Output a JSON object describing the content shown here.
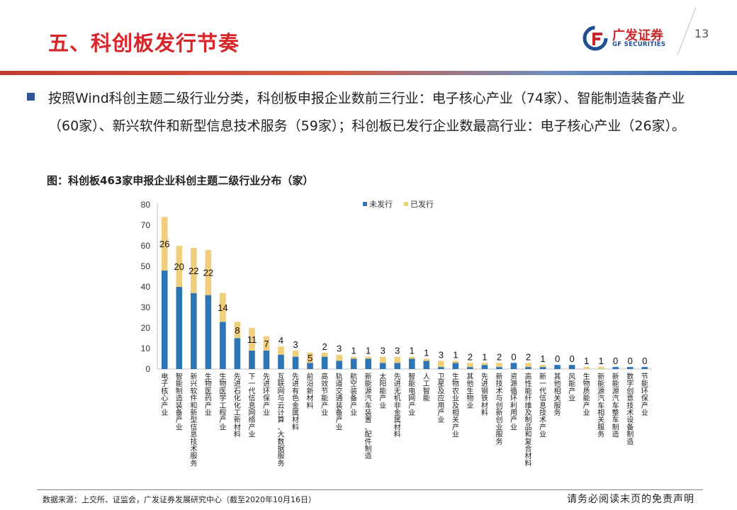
{
  "header": {
    "title": "五、科创板发行节奏",
    "logo_cn": "广发证券",
    "logo_en": "GF SECURITIES",
    "page_number": "13"
  },
  "body": {
    "paragraph": "按照Wind科创主题二级行业分类，科创板申报企业数前三行业：电子核心产业（74家）、智能制造装备产业（60家）、新兴软件和新型信息技术服务（59家）；科创板已发行企业数最高行业：电子核心产业（26家）。",
    "figure_caption": "图：科创板463家申报企业科创主题二级行业分布（家）"
  },
  "colors": {
    "title_red": "#d8252a",
    "bar_blue": "#2e75b6",
    "bar_gold": "#f0cf7c",
    "bullet_blue": "#2f5597"
  },
  "chart_data": {
    "type": "bar",
    "stacked": true,
    "categories": [
      "电子核心产业",
      "智能制造装备产业",
      "新兴软件和新型信息技术服务",
      "生物医药产业",
      "生物医学工程产业",
      "先进石化化工新材料",
      "下一代信息网络产业",
      "先进环保产业",
      "互联网与云计算、大数据服务",
      "先进有色金属材料",
      "前沿新材料",
      "高效节能产业",
      "轨道交通装备产业",
      "航空装备产业",
      "新能源汽车装置、配件制造",
      "太阳能产业",
      "先进无机非金属材料",
      "智能电网产业",
      "人工智能",
      "卫星及应用产业",
      "生物农业及相关产业",
      "其他生物业",
      "先进钢铁材料",
      "新技术与创新创业服务",
      "资源循环利用产业",
      "高性能纤维及制品和复合材料",
      "新一代信息技术产业",
      "其他相关服务",
      "风能产业",
      "生物质能产业",
      "新能源汽车相关服务",
      "新能源汽车整车制造",
      "数字创意技术设备制造",
      "节能环保产业"
    ],
    "series": [
      {
        "name": "未发行",
        "values": [
          48,
          40,
          37,
          36,
          23,
          15,
          9,
          9,
          7,
          6,
          3,
          6,
          4,
          5,
          5,
          3,
          3,
          5,
          4,
          1,
          3,
          1,
          2,
          1,
          3,
          1,
          1,
          2,
          2,
          0,
          0,
          1,
          1,
          1
        ]
      },
      {
        "name": "已发行",
        "values": [
          26,
          20,
          22,
          22,
          14,
          8,
          11,
          7,
          4,
          3,
          5,
          2,
          3,
          1,
          1,
          3,
          3,
          1,
          1,
          3,
          1,
          2,
          1,
          2,
          0,
          2,
          1,
          0,
          0,
          1,
          1,
          0,
          0,
          0
        ]
      }
    ],
    "data_labels": [
      "26",
      "20",
      "22",
      "22",
      "14",
      "8",
      "11",
      "7",
      "4",
      "3",
      "5",
      "2",
      "3",
      "1",
      "1",
      "3",
      "3",
      "1",
      "1",
      "3",
      "1",
      "2",
      "1",
      "2",
      "0",
      "2",
      "1",
      "0",
      "0",
      "1",
      "1",
      "0",
      "0",
      "0"
    ],
    "ylim": [
      0,
      80
    ],
    "yticks": [
      "0",
      "10",
      "20",
      "30",
      "40",
      "50",
      "60",
      "70",
      "80"
    ],
    "legend_position": "top",
    "grid": false
  },
  "footer": {
    "source": "数据来源：上交所、证监会，广发证券发展研究中心（截至2020年10月16日）",
    "disclaimer": "请务必阅读末页的免责声明"
  }
}
